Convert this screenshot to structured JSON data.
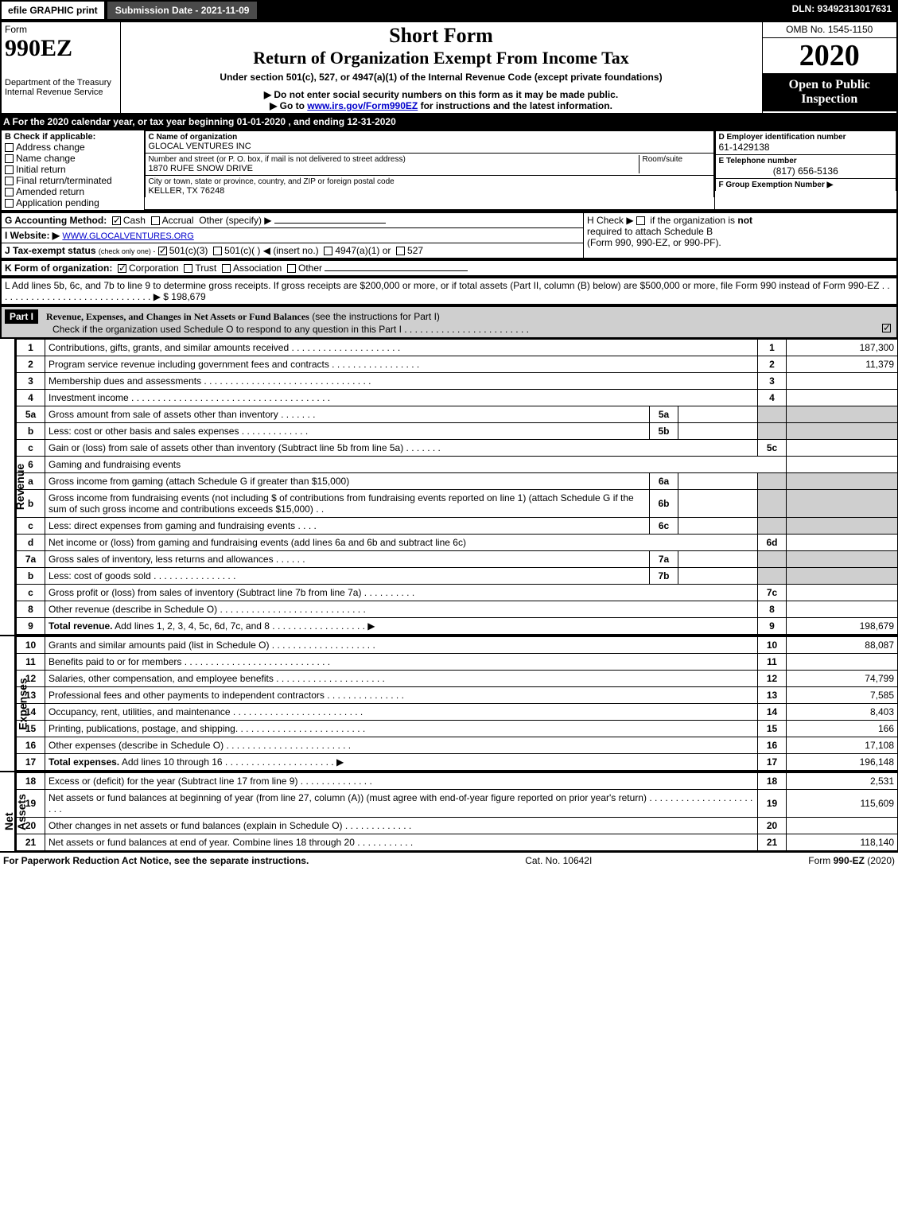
{
  "topbar": {
    "efile": "efile GRAPHIC print",
    "submission_date_label": "Submission Date - 2021-11-09",
    "dln": "DLN: 93492313017631"
  },
  "header": {
    "form_word": "Form",
    "form_number": "990EZ",
    "dept": "Department of the Treasury",
    "irs": "Internal Revenue Service",
    "short_form": "Short Form",
    "title": "Return of Organization Exempt From Income Tax",
    "subtitle": "Under section 501(c), 527, or 4947(a)(1) of the Internal Revenue Code (except private foundations)",
    "warn1": "▶ Do not enter social security numbers on this form as it may be made public.",
    "warn2_pre": "▶ Go to ",
    "warn2_link": "www.irs.gov/Form990EZ",
    "warn2_post": " for instructions and the latest information.",
    "omb": "OMB No. 1545-1150",
    "year": "2020",
    "open_public": "Open to Public Inspection"
  },
  "lineA": "A For the 2020 calendar year, or tax year beginning 01-01-2020 , and ending 12-31-2020",
  "boxB": {
    "label": "B  Check if applicable:",
    "items": [
      "Address change",
      "Name change",
      "Initial return",
      "Final return/terminated",
      "Amended return",
      "Application pending"
    ]
  },
  "boxC": {
    "label": "C Name of organization",
    "org_name": "GLOCAL VENTURES INC",
    "addr_label": "Number and street (or P. O. box, if mail is not delivered to street address)",
    "room_label": "Room/suite",
    "addr": "1870 RUFE SNOW DRIVE",
    "city_label": "City or town, state or province, country, and ZIP or foreign postal code",
    "city": "KELLER, TX  76248"
  },
  "boxD": {
    "label": "D Employer identification number",
    "value": "61-1429138"
  },
  "boxE": {
    "label": "E Telephone number",
    "value": "(817) 656-5136"
  },
  "boxF": {
    "label": "F Group Exemption Number  ▶",
    "value": ""
  },
  "lineG": {
    "label": "G Accounting Method:",
    "cash": "Cash",
    "accrual": "Accrual",
    "other": "Other (specify) ▶"
  },
  "lineH": {
    "pre": "H  Check ▶ ",
    "post": " if the organization is ",
    "not": "not",
    "text2": "required to attach Schedule B",
    "text3": "(Form 990, 990-EZ, or 990-PF)."
  },
  "lineI": {
    "label": "I Website: ▶",
    "value": "WWW.GLOCALVENTURES.ORG"
  },
  "lineJ": {
    "label": "J Tax-exempt status",
    "sub": "(check only one) -",
    "opt1": "501(c)(3)",
    "opt2": "501(c)(  ) ◀ (insert no.)",
    "opt3": "4947(a)(1) or",
    "opt4": "527"
  },
  "lineK": {
    "label": "K Form of organization:",
    "opts": [
      "Corporation",
      "Trust",
      "Association",
      "Other"
    ]
  },
  "lineL": {
    "text": "L Add lines 5b, 6c, and 7b to line 9 to determine gross receipts. If gross receipts are $200,000 or more, or if total assets (Part II, column (B) below) are $500,000 or more, file Form 990 instead of Form 990-EZ . . . . . . . . . . . . . . . . . . . . . . . . . . . . . . ▶ $",
    "value": "198,679"
  },
  "part1": {
    "badge": "Part I",
    "title": "Revenue, Expenses, and Changes in Net Assets or Fund Balances",
    "title_sub": " (see the instructions for Part I)",
    "check_text": "Check if the organization used Schedule O to respond to any question in this Part I . . . . . . . . . . . . . . . . . . . . . . . .",
    "checked": true
  },
  "sections": {
    "revenue_label": "Revenue",
    "expenses_label": "Expenses",
    "netassets_label": "Net Assets"
  },
  "rows": [
    {
      "ln": "1",
      "desc": "Contributions, gifts, grants, and similar amounts received . . . . . . . . . . . . . . . . . . . . .",
      "r": "1",
      "amt": "187,300"
    },
    {
      "ln": "2",
      "desc": "Program service revenue including government fees and contracts . . . . . . . . . . . . . . . . .",
      "r": "2",
      "amt": "11,379"
    },
    {
      "ln": "3",
      "desc": "Membership dues and assessments . . . . . . . . . . . . . . . . . . . . . . . . . . . . . . . .",
      "r": "3",
      "amt": ""
    },
    {
      "ln": "4",
      "desc": "Investment income . . . . . . . . . . . . . . . . . . . . . . . . . . . . . . . . . . . . . .",
      "r": "4",
      "amt": ""
    },
    {
      "ln": "5a",
      "desc": "Gross amount from sale of assets other than inventory . . . . . . .",
      "mid": "5a",
      "midval": "",
      "grey": true
    },
    {
      "ln": "b",
      "desc": "Less: cost or other basis and sales expenses . . . . . . . . . . . . .",
      "mid": "5b",
      "midval": "",
      "grey": true
    },
    {
      "ln": "c",
      "desc": "Gain or (loss) from sale of assets other than inventory (Subtract line 5b from line 5a) . . . . . . .",
      "r": "5c",
      "amt": ""
    },
    {
      "ln": "6",
      "desc": "Gaming and fundraising events",
      "plain": true
    },
    {
      "ln": "a",
      "desc": "Gross income from gaming (attach Schedule G if greater than $15,000)",
      "mid": "6a",
      "midval": "",
      "grey": true
    },
    {
      "ln": "b",
      "desc": "Gross income from fundraising events (not including $                         of contributions from fundraising events reported on line 1) (attach Schedule G if the sum of such gross income and contributions exceeds $15,000)   . .",
      "mid": "6b",
      "midval": "",
      "grey": true
    },
    {
      "ln": "c",
      "desc": "Less: direct expenses from gaming and fundraising events   . . . .",
      "mid": "6c",
      "midval": "",
      "grey": true
    },
    {
      "ln": "d",
      "desc": "Net income or (loss) from gaming and fundraising events (add lines 6a and 6b and subtract line 6c)",
      "r": "6d",
      "amt": ""
    },
    {
      "ln": "7a",
      "desc": "Gross sales of inventory, less returns and allowances . . . . . .",
      "mid": "7a",
      "midval": "",
      "grey": true
    },
    {
      "ln": "b",
      "desc": "Less: cost of goods sold       . . . . . . . . . . . . . . . .",
      "mid": "7b",
      "midval": "",
      "grey": true
    },
    {
      "ln": "c",
      "desc": "Gross profit or (loss) from sales of inventory (Subtract line 7b from line 7a) . . . . . . . . . .",
      "r": "7c",
      "amt": ""
    },
    {
      "ln": "8",
      "desc": "Other revenue (describe in Schedule O) . . . . . . . . . . . . . . . . . . . . . . . . . . . .",
      "r": "8",
      "amt": ""
    },
    {
      "ln": "9",
      "desc": "Total revenue. Add lines 1, 2, 3, 4, 5c, 6d, 7c, and 8   . . . . . . . . . . . . . . . . . .   ▶",
      "r": "9",
      "amt": "198,679",
      "bold": true
    }
  ],
  "exp_rows": [
    {
      "ln": "10",
      "desc": "Grants and similar amounts paid (list in Schedule O) . . . . . . . . . . . . . . . . . . . .",
      "r": "10",
      "amt": "88,087"
    },
    {
      "ln": "11",
      "desc": "Benefits paid to or for members     . . . . . . . . . . . . . . . . . . . . . . . . . . . .",
      "r": "11",
      "amt": ""
    },
    {
      "ln": "12",
      "desc": "Salaries, other compensation, and employee benefits . . . . . . . . . . . . . . . . . . . . .",
      "r": "12",
      "amt": "74,799"
    },
    {
      "ln": "13",
      "desc": "Professional fees and other payments to independent contractors . . . . . . . . . . . . . . .",
      "r": "13",
      "amt": "7,585"
    },
    {
      "ln": "14",
      "desc": "Occupancy, rent, utilities, and maintenance . . . . . . . . . . . . . . . . . . . . . . . . .",
      "r": "14",
      "amt": "8,403"
    },
    {
      "ln": "15",
      "desc": "Printing, publications, postage, and shipping. . . . . . . . . . . . . . . . . . . . . . . . .",
      "r": "15",
      "amt": "166"
    },
    {
      "ln": "16",
      "desc": "Other expenses (describe in Schedule O)     . . . . . . . . . . . . . . . . . . . . . . . .",
      "r": "16",
      "amt": "17,108"
    },
    {
      "ln": "17",
      "desc": "Total expenses. Add lines 10 through 16     . . . . . . . . . . . . . . . . . . . . .   ▶",
      "r": "17",
      "amt": "196,148",
      "bold": true
    }
  ],
  "net_rows": [
    {
      "ln": "18",
      "desc": "Excess or (deficit) for the year (Subtract line 17 from line 9)       . . . . . . . . . . . . . .",
      "r": "18",
      "amt": "2,531"
    },
    {
      "ln": "19",
      "desc": "Net assets or fund balances at beginning of year (from line 27, column (A)) (must agree with end-of-year figure reported on prior year's return) . . . . . . . . . . . . . . . . . . . . . . .",
      "r": "19",
      "amt": "115,609"
    },
    {
      "ln": "20",
      "desc": "Other changes in net assets or fund balances (explain in Schedule O) . . . . . . . . . . . . .",
      "r": "20",
      "amt": ""
    },
    {
      "ln": "21",
      "desc": "Net assets or fund balances at end of year. Combine lines 18 through 20 . . . . . . . . . . .",
      "r": "21",
      "amt": "118,140"
    }
  ],
  "footer": {
    "left": "For Paperwork Reduction Act Notice, see the separate instructions.",
    "mid": "Cat. No. 10642I",
    "right_pre": "Form ",
    "right_bold": "990-EZ",
    "right_post": " (2020)"
  },
  "colors": {
    "black": "#000000",
    "grey": "#cfcfcf",
    "darkgrey": "#4a4a4a",
    "link": "#0000cc"
  }
}
